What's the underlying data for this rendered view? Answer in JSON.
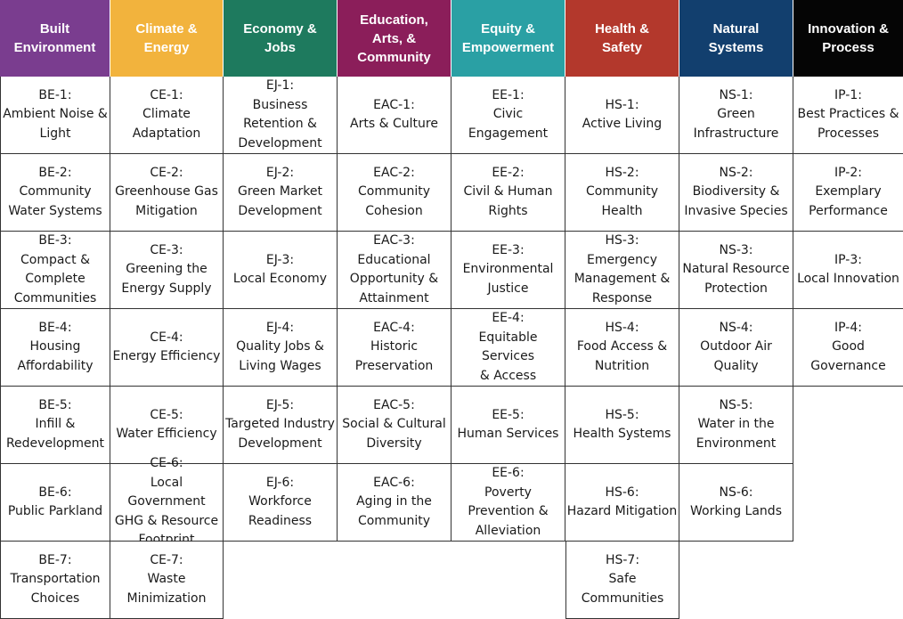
{
  "columns": [
    {
      "header": "Built\nEnvironment",
      "color": "#7a3d8f",
      "items": [
        {
          "code": "BE-1:",
          "label": "Ambient Noise &\nLight"
        },
        {
          "code": "BE-2:",
          "label": "Community\nWater Systems"
        },
        {
          "code": "BE-3:",
          "label": "Compact &\nComplete\nCommunities"
        },
        {
          "code": "BE-4:",
          "label": "Housing\nAffordability"
        },
        {
          "code": "BE-5:",
          "label": "Infill &\nRedevelopment"
        },
        {
          "code": "BE-6:",
          "label": "Public Parkland"
        },
        {
          "code": "BE-7:",
          "label": "Transportation\nChoices"
        }
      ]
    },
    {
      "header": "Climate &\nEnergy",
      "color": "#f2b33d",
      "items": [
        {
          "code": "CE-1:",
          "label": "Climate\nAdaptation"
        },
        {
          "code": "CE-2:",
          "label": "Greenhouse Gas\nMitigation"
        },
        {
          "code": "CE-3:",
          "label": "Greening the\nEnergy Supply"
        },
        {
          "code": "CE-4:",
          "label": "Energy Efficiency"
        },
        {
          "code": "CE-5:",
          "label": "Water Efficiency"
        },
        {
          "code": "CE-6:",
          "label": "Local Government\nGHG & Resource\nFootprint"
        },
        {
          "code": "CE-7:",
          "label": "Waste\nMinimization"
        }
      ]
    },
    {
      "header": "Economy &\nJobs",
      "color": "#1e7a5e",
      "items": [
        {
          "code": "EJ-1:",
          "label": "Business\nRetention &\nDevelopment"
        },
        {
          "code": "EJ-2:",
          "label": "Green Market\nDevelopment"
        },
        {
          "code": "EJ-3:",
          "label": "Local Economy"
        },
        {
          "code": "EJ-4:",
          "label": "Quality Jobs &\nLiving Wages"
        },
        {
          "code": "EJ-5:",
          "label": "Targeted Industry\nDevelopment"
        },
        {
          "code": "EJ-6:",
          "label": "Workforce\nReadiness"
        }
      ]
    },
    {
      "header": "Education,\nArts, &\nCommunity",
      "color": "#8b1e5a",
      "items": [
        {
          "code": "EAC-1:",
          "label": "Arts & Culture"
        },
        {
          "code": "EAC-2:",
          "label": "Community\nCohesion"
        },
        {
          "code": "EAC-3:",
          "label": "Educational\nOpportunity &\nAttainment"
        },
        {
          "code": "EAC-4:",
          "label": "Historic\nPreservation"
        },
        {
          "code": "EAC-5:",
          "label": "Social & Cultural\nDiversity"
        },
        {
          "code": "EAC-6:",
          "label": "Aging in the\nCommunity"
        }
      ]
    },
    {
      "header": "Equity &\nEmpowerment",
      "color": "#2aa0a4",
      "items": [
        {
          "code": "EE-1:",
          "label": "Civic Engagement"
        },
        {
          "code": "EE-2:",
          "label": "Civil & Human\nRights"
        },
        {
          "code": "EE-3:",
          "label": "Environmental\nJustice"
        },
        {
          "code": "EE-4:",
          "label": "Equitable Services\n& Access"
        },
        {
          "code": "EE-5:",
          "label": "Human Services"
        },
        {
          "code": "EE-6:",
          "label": "Poverty\nPrevention &\nAlleviation"
        }
      ]
    },
    {
      "header": "Health &\nSafety",
      "color": "#b3382c",
      "items": [
        {
          "code": "HS-1:",
          "label": "Active Living"
        },
        {
          "code": "HS-2:",
          "label": "Community\nHealth"
        },
        {
          "code": "HS-3:",
          "label": "Emergency\nManagement &\nResponse"
        },
        {
          "code": "HS-4:",
          "label": "Food Access &\nNutrition"
        },
        {
          "code": "HS-5:",
          "label": "Health Systems"
        },
        {
          "code": "HS-6:",
          "label": "Hazard Mitigation"
        },
        {
          "code": "HS-7:",
          "label": "Safe Communities"
        }
      ]
    },
    {
      "header": "Natural\nSystems",
      "color": "#123f6e",
      "items": [
        {
          "code": "NS-1:",
          "label": "Green\nInfrastructure"
        },
        {
          "code": "NS-2:",
          "label": "Biodiversity &\nInvasive Species"
        },
        {
          "code": "NS-3:",
          "label": "Natural Resource\nProtection"
        },
        {
          "code": "NS-4:",
          "label": "Outdoor Air\nQuality"
        },
        {
          "code": "NS-5:",
          "label": "Water in the\nEnvironment"
        },
        {
          "code": "NS-6:",
          "label": "Working Lands"
        }
      ]
    },
    {
      "header": "Innovation &\nProcess",
      "color": "#050505",
      "items": [
        {
          "code": "IP-1:",
          "label": "Best Practices &\nProcesses"
        },
        {
          "code": "IP-2:",
          "label": "Exemplary\nPerformance"
        },
        {
          "code": "IP-3:",
          "label": "Local Innovation"
        },
        {
          "code": "IP-4:",
          "label": "Good Governance"
        }
      ]
    }
  ]
}
